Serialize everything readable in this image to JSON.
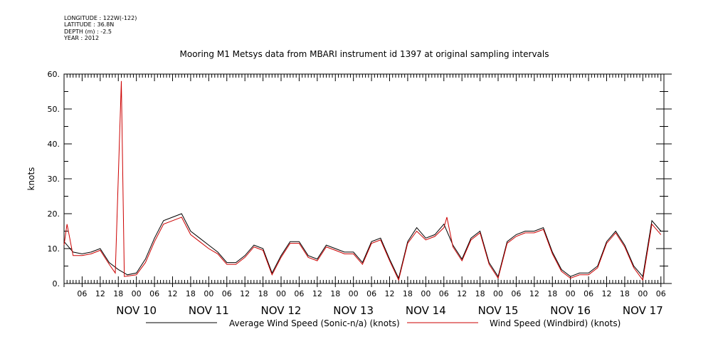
{
  "meta": {
    "longitude": "LONGITUDE : 122W(-122)",
    "latitude": "LATITUDE : 36.8N",
    "depth": "DEPTH (m) : -2.5",
    "year": "YEAR : 2012"
  },
  "chart_data": {
    "type": "line",
    "title": "Mooring M1 Metsys data from MBARI instrument id 1397 at original sampling intervals",
    "ylabel": "knots",
    "ylim": [
      0,
      60
    ],
    "yticks": [
      0,
      10,
      20,
      30,
      40,
      50,
      60
    ],
    "ytick_labels": [
      "0.",
      "10.",
      "20.",
      "30.",
      "40.",
      "50.",
      "60."
    ],
    "xlim": [
      "2012-11-09 00:00",
      "2012-11-17 07:00"
    ],
    "hour_tick_labels": [
      "06",
      "12",
      "18",
      "00"
    ],
    "day_labels": [
      "NOV 10",
      "NOV 11",
      "NOV 12",
      "NOV 13",
      "NOV 14",
      "NOV 15",
      "NOV 16",
      "NOV 17"
    ],
    "grid": false,
    "legend_placement": "bottom",
    "series": [
      {
        "name": "Average Wind Speed (Sonic-n/a) (knots)",
        "color": "#000000",
        "points": [
          [
            "2012-11-09 00:00",
            12
          ],
          [
            "2012-11-09 03:00",
            9
          ],
          [
            "2012-11-09 06:00",
            8.5
          ],
          [
            "2012-11-09 09:00",
            9
          ],
          [
            "2012-11-09 12:00",
            10
          ],
          [
            "2012-11-09 15:00",
            6
          ],
          [
            "2012-11-09 18:00",
            4
          ],
          [
            "2012-11-09 21:00",
            2.5
          ],
          [
            "2012-11-10 00:00",
            3
          ],
          [
            "2012-11-10 03:00",
            7
          ],
          [
            "2012-11-10 06:00",
            13
          ],
          [
            "2012-11-10 09:00",
            18
          ],
          [
            "2012-11-10 12:00",
            19
          ],
          [
            "2012-11-10 15:00",
            20
          ],
          [
            "2012-11-10 18:00",
            15
          ],
          [
            "2012-11-10 21:00",
            13
          ],
          [
            "2012-11-11 00:00",
            11
          ],
          [
            "2012-11-11 03:00",
            9
          ],
          [
            "2012-11-11 06:00",
            6
          ],
          [
            "2012-11-11 09:00",
            6
          ],
          [
            "2012-11-11 12:00",
            8
          ],
          [
            "2012-11-11 15:00",
            11
          ],
          [
            "2012-11-11 18:00",
            10
          ],
          [
            "2012-11-11 21:00",
            3
          ],
          [
            "2012-11-12 00:00",
            8
          ],
          [
            "2012-11-12 03:00",
            12
          ],
          [
            "2012-11-12 06:00",
            12
          ],
          [
            "2012-11-12 09:00",
            8
          ],
          [
            "2012-11-12 12:00",
            7
          ],
          [
            "2012-11-12 15:00",
            11
          ],
          [
            "2012-11-12 18:00",
            10
          ],
          [
            "2012-11-12 21:00",
            9
          ],
          [
            "2012-11-13 00:00",
            9
          ],
          [
            "2012-11-13 03:00",
            6
          ],
          [
            "2012-11-13 06:00",
            12
          ],
          [
            "2012-11-13 09:00",
            13
          ],
          [
            "2012-11-13 12:00",
            7
          ],
          [
            "2012-11-13 15:00",
            1.5
          ],
          [
            "2012-11-13 18:00",
            12
          ],
          [
            "2012-11-13 21:00",
            16
          ],
          [
            "2012-11-14 00:00",
            13
          ],
          [
            "2012-11-14 03:00",
            14
          ],
          [
            "2012-11-14 06:00",
            17
          ],
          [
            "2012-11-14 09:00",
            11
          ],
          [
            "2012-11-14 12:00",
            7
          ],
          [
            "2012-11-14 15:00",
            13
          ],
          [
            "2012-11-14 18:00",
            15
          ],
          [
            "2012-11-14 21:00",
            6
          ],
          [
            "2012-11-15 00:00",
            2
          ],
          [
            "2012-11-15 03:00",
            12
          ],
          [
            "2012-11-15 06:00",
            14
          ],
          [
            "2012-11-15 09:00",
            15
          ],
          [
            "2012-11-15 12:00",
            15
          ],
          [
            "2012-11-15 15:00",
            16
          ],
          [
            "2012-11-15 18:00",
            9
          ],
          [
            "2012-11-15 21:00",
            4
          ],
          [
            "2012-11-16 00:00",
            2
          ],
          [
            "2012-11-16 03:00",
            3
          ],
          [
            "2012-11-16 06:00",
            3
          ],
          [
            "2012-11-16 09:00",
            5
          ],
          [
            "2012-11-16 12:00",
            12
          ],
          [
            "2012-11-16 15:00",
            15
          ],
          [
            "2012-11-16 18:00",
            11
          ],
          [
            "2012-11-16 21:00",
            5
          ],
          [
            "2012-11-17 00:00",
            2
          ],
          [
            "2012-11-17 03:00",
            18
          ],
          [
            "2012-11-17 06:00",
            15
          ]
        ]
      },
      {
        "name": "Wind Speed (Windbird) (knots)",
        "color": "#cc0000",
        "points": [
          [
            "2012-11-09 00:00",
            11
          ],
          [
            "2012-11-09 01:00",
            17
          ],
          [
            "2012-11-09 03:00",
            8
          ],
          [
            "2012-11-09 06:00",
            8
          ],
          [
            "2012-11-09 09:00",
            8.5
          ],
          [
            "2012-11-09 12:00",
            9.5
          ],
          [
            "2012-11-09 15:00",
            5.5
          ],
          [
            "2012-11-09 17:00",
            3
          ],
          [
            "2012-11-09 19:00",
            58
          ],
          [
            "2012-11-09 19:30",
            30
          ],
          [
            "2012-11-09 20:00",
            2
          ],
          [
            "2012-11-10 00:00",
            2.5
          ],
          [
            "2012-11-10 03:00",
            6
          ],
          [
            "2012-11-10 06:00",
            12
          ],
          [
            "2012-11-10 09:00",
            17
          ],
          [
            "2012-11-10 12:00",
            18
          ],
          [
            "2012-11-10 15:00",
            19
          ],
          [
            "2012-11-10 18:00",
            14
          ],
          [
            "2012-11-10 21:00",
            12
          ],
          [
            "2012-11-11 00:00",
            10
          ],
          [
            "2012-11-11 03:00",
            8.5
          ],
          [
            "2012-11-11 06:00",
            5.5
          ],
          [
            "2012-11-11 09:00",
            5.5
          ],
          [
            "2012-11-11 12:00",
            7.5
          ],
          [
            "2012-11-11 15:00",
            10.5
          ],
          [
            "2012-11-11 18:00",
            9.5
          ],
          [
            "2012-11-11 21:00",
            2.5
          ],
          [
            "2012-11-12 00:00",
            7.5
          ],
          [
            "2012-11-12 03:00",
            11.5
          ],
          [
            "2012-11-12 06:00",
            11.5
          ],
          [
            "2012-11-12 09:00",
            7.5
          ],
          [
            "2012-11-12 12:00",
            6.5
          ],
          [
            "2012-11-12 15:00",
            10.5
          ],
          [
            "2012-11-12 18:00",
            9.5
          ],
          [
            "2012-11-12 21:00",
            8.5
          ],
          [
            "2012-11-13 00:00",
            8.5
          ],
          [
            "2012-11-13 03:00",
            5.5
          ],
          [
            "2012-11-13 06:00",
            11.5
          ],
          [
            "2012-11-13 09:00",
            12.5
          ],
          [
            "2012-11-13 12:00",
            6.5
          ],
          [
            "2012-11-13 15:00",
            1
          ],
          [
            "2012-11-13 18:00",
            11.5
          ],
          [
            "2012-11-13 21:00",
            15
          ],
          [
            "2012-11-14 00:00",
            12.5
          ],
          [
            "2012-11-14 03:00",
            13.5
          ],
          [
            "2012-11-14 06:00",
            16
          ],
          [
            "2012-11-14 07:00",
            19
          ],
          [
            "2012-11-14 09:00",
            10.5
          ],
          [
            "2012-11-14 12:00",
            6.5
          ],
          [
            "2012-11-14 15:00",
            12.5
          ],
          [
            "2012-11-14 18:00",
            14.5
          ],
          [
            "2012-11-14 21:00",
            5.5
          ],
          [
            "2012-11-15 00:00",
            1.5
          ],
          [
            "2012-11-15 03:00",
            11.5
          ],
          [
            "2012-11-15 06:00",
            13.5
          ],
          [
            "2012-11-15 09:00",
            14.5
          ],
          [
            "2012-11-15 12:00",
            14.5
          ],
          [
            "2012-11-15 15:00",
            15.5
          ],
          [
            "2012-11-15 18:00",
            8.5
          ],
          [
            "2012-11-15 21:00",
            3.5
          ],
          [
            "2012-11-16 00:00",
            1.5
          ],
          [
            "2012-11-16 03:00",
            2.5
          ],
          [
            "2012-11-16 06:00",
            2.5
          ],
          [
            "2012-11-16 09:00",
            4.5
          ],
          [
            "2012-11-16 12:00",
            11.5
          ],
          [
            "2012-11-16 15:00",
            14.5
          ],
          [
            "2012-11-16 18:00",
            10.5
          ],
          [
            "2012-11-16 21:00",
            4.5
          ],
          [
            "2012-11-17 00:00",
            1
          ],
          [
            "2012-11-17 03:00",
            17
          ],
          [
            "2012-11-17 06:00",
            14
          ]
        ]
      }
    ]
  }
}
